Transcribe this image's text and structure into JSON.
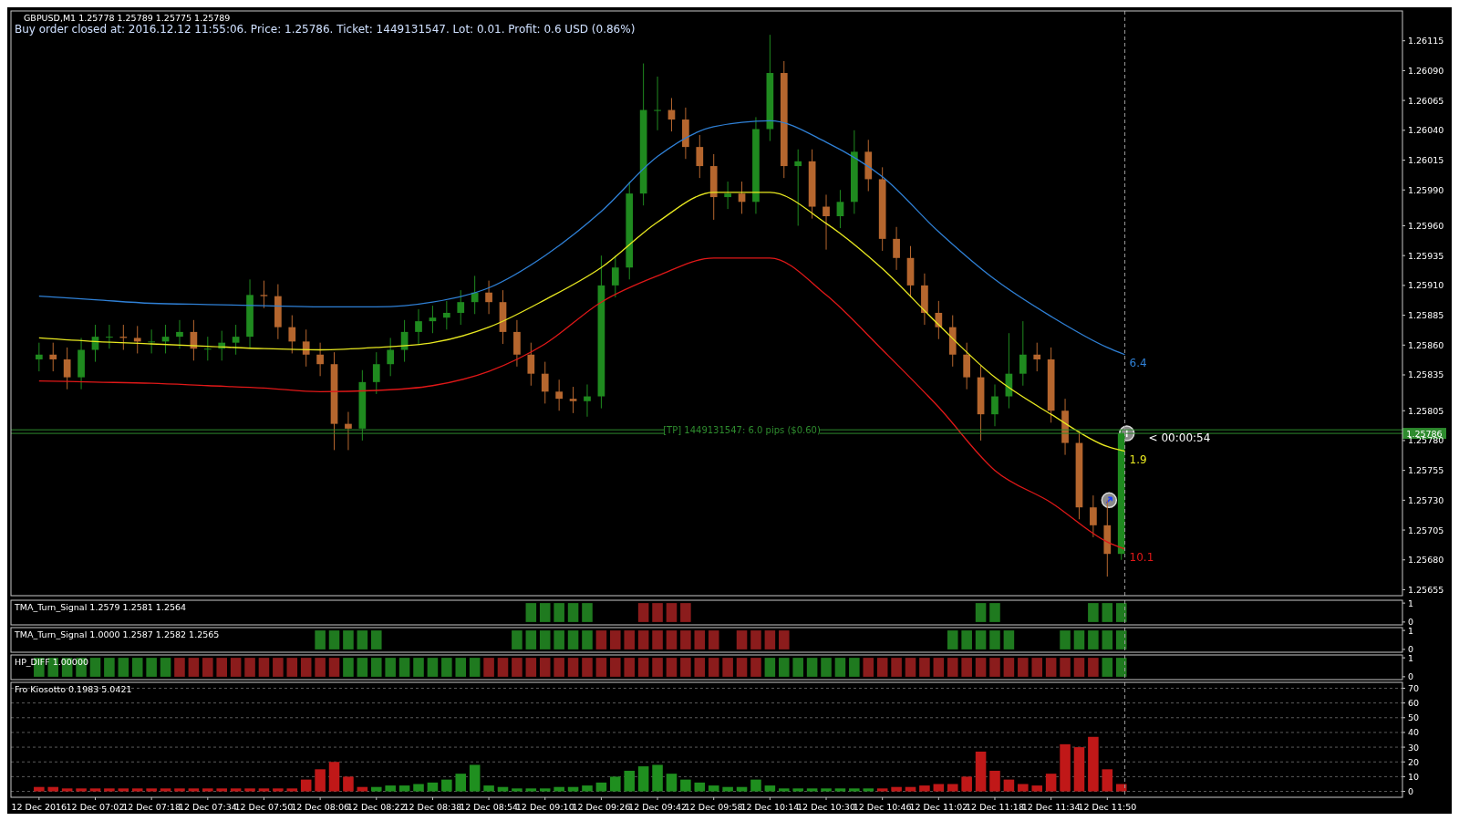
{
  "chart_data": [
    {
      "type": "candlestick",
      "title": "GBPUSD,M1  1.25778 1.25789 1.25775 1.25789",
      "subtitle": "Buy order closed at: 2016.12.12 11:55:06. Price: 1.25786. Ticket: 1449131547. Lot: 0.01. Profit: 0.6 USD (0.86%)",
      "x": [
        "2016-12-12T06:46",
        "2016-12-12T06:50",
        "2016-12-12T06:54",
        "2016-12-12T06:58",
        "2016-12-12T07:02",
        "2016-12-12T07:06",
        "2016-12-12T07:10",
        "2016-12-12T07:14",
        "2016-12-12T07:18",
        "2016-12-12T07:22",
        "2016-12-12T07:26",
        "2016-12-12T07:30",
        "2016-12-12T07:34",
        "2016-12-12T07:38",
        "2016-12-12T07:42",
        "2016-12-12T07:46",
        "2016-12-12T07:50",
        "2016-12-12T07:54",
        "2016-12-12T07:58",
        "2016-12-12T08:02",
        "2016-12-12T08:06",
        "2016-12-12T08:10",
        "2016-12-12T08:14",
        "2016-12-12T08:18",
        "2016-12-12T08:22",
        "2016-12-12T08:26",
        "2016-12-12T08:30",
        "2016-12-12T08:34",
        "2016-12-12T08:38",
        "2016-12-12T08:42",
        "2016-12-12T08:46",
        "2016-12-12T08:50",
        "2016-12-12T08:54",
        "2016-12-12T08:58",
        "2016-12-12T09:02",
        "2016-12-12T09:06",
        "2016-12-12T09:10",
        "2016-12-12T09:14",
        "2016-12-12T09:18",
        "2016-12-12T09:22",
        "2016-12-12T09:26",
        "2016-12-12T09:30",
        "2016-12-12T09:34",
        "2016-12-12T09:38",
        "2016-12-12T09:42",
        "2016-12-12T09:46",
        "2016-12-12T09:50",
        "2016-12-12T09:54",
        "2016-12-12T09:58",
        "2016-12-12T10:02",
        "2016-12-12T10:06",
        "2016-12-12T10:10",
        "2016-12-12T10:14",
        "2016-12-12T10:18",
        "2016-12-12T10:22",
        "2016-12-12T10:26",
        "2016-12-12T10:30",
        "2016-12-12T10:34",
        "2016-12-12T10:38",
        "2016-12-12T10:42",
        "2016-12-12T10:46",
        "2016-12-12T10:50",
        "2016-12-12T10:54",
        "2016-12-12T10:58",
        "2016-12-12T11:02",
        "2016-12-12T11:06",
        "2016-12-12T11:10",
        "2016-12-12T11:14",
        "2016-12-12T11:18",
        "2016-12-12T11:22",
        "2016-12-12T11:26",
        "2016-12-12T11:30",
        "2016-12-12T11:34",
        "2016-12-12T11:38",
        "2016-12-12T11:42",
        "2016-12-12T11:46",
        "2016-12-12T11:50",
        "2016-12-12T11:54"
      ],
      "ohlc": [
        [
          1.25848,
          1.25862,
          1.25838,
          1.25852
        ],
        [
          1.25852,
          1.25862,
          1.25838,
          1.25848
        ],
        [
          1.25848,
          1.25858,
          1.25823,
          1.25833
        ],
        [
          1.25833,
          1.25866,
          1.25823,
          1.25856
        ],
        [
          1.25856,
          1.25877,
          1.25846,
          1.25867
        ],
        [
          1.25867,
          1.25877,
          1.25857,
          1.25867
        ],
        [
          1.25867,
          1.25877,
          1.25856,
          1.25866
        ],
        [
          1.25866,
          1.25876,
          1.25853,
          1.25863
        ],
        [
          1.25863,
          1.25873,
          1.25853,
          1.25863
        ],
        [
          1.25863,
          1.25877,
          1.25853,
          1.25867
        ],
        [
          1.25867,
          1.25881,
          1.25857,
          1.25871
        ],
        [
          1.25871,
          1.25881,
          1.25847,
          1.25857
        ],
        [
          1.25857,
          1.25867,
          1.25847,
          1.25857
        ],
        [
          1.25857,
          1.25872,
          1.25847,
          1.25862
        ],
        [
          1.25862,
          1.25877,
          1.25852,
          1.25867
        ],
        [
          1.25867,
          1.25915,
          1.25857,
          1.25902
        ],
        [
          1.25902,
          1.25914,
          1.25891,
          1.25901
        ],
        [
          1.25901,
          1.25911,
          1.25865,
          1.25875
        ],
        [
          1.25875,
          1.25885,
          1.25853,
          1.25863
        ],
        [
          1.25863,
          1.25873,
          1.25842,
          1.25852
        ],
        [
          1.25852,
          1.25862,
          1.25834,
          1.25844
        ],
        [
          1.25844,
          1.25854,
          1.25772,
          1.25794
        ],
        [
          1.25794,
          1.25804,
          1.25772,
          1.2579
        ],
        [
          1.2579,
          1.25839,
          1.2578,
          1.25829
        ],
        [
          1.25829,
          1.25854,
          1.25819,
          1.25844
        ],
        [
          1.25844,
          1.25866,
          1.25834,
          1.25856
        ],
        [
          1.25856,
          1.25881,
          1.25846,
          1.25871
        ],
        [
          1.25871,
          1.2589,
          1.25861,
          1.2588
        ],
        [
          1.2588,
          1.25893,
          1.2587,
          1.25883
        ],
        [
          1.25883,
          1.25897,
          1.25873,
          1.25887
        ],
        [
          1.25887,
          1.25906,
          1.25877,
          1.25896
        ],
        [
          1.25896,
          1.25918,
          1.25886,
          1.25904
        ],
        [
          1.25904,
          1.25914,
          1.25886,
          1.25896
        ],
        [
          1.25896,
          1.25906,
          1.25861,
          1.25871
        ],
        [
          1.25871,
          1.25881,
          1.25842,
          1.25852
        ],
        [
          1.25852,
          1.25862,
          1.25826,
          1.25836
        ],
        [
          1.25836,
          1.25846,
          1.25811,
          1.25821
        ],
        [
          1.25821,
          1.25831,
          1.25805,
          1.25815
        ],
        [
          1.25815,
          1.25825,
          1.25803,
          1.25813
        ],
        [
          1.25813,
          1.25827,
          1.258,
          1.25817
        ],
        [
          1.25817,
          1.25935,
          1.25807,
          1.2591
        ],
        [
          1.2591,
          1.25935,
          1.259,
          1.25925
        ],
        [
          1.25925,
          1.25997,
          1.25915,
          1.25987
        ],
        [
          1.25987,
          1.26096,
          1.25977,
          1.26057
        ],
        [
          1.26057,
          1.26085,
          1.2604,
          1.26057
        ],
        [
          1.26057,
          1.26067,
          1.26039,
          1.26049
        ],
        [
          1.26049,
          1.26059,
          1.26016,
          1.26026
        ],
        [
          1.26026,
          1.26036,
          1.26,
          1.2601
        ],
        [
          1.2601,
          1.2602,
          1.25965,
          1.25984
        ],
        [
          1.25984,
          1.25997,
          1.25974,
          1.25987
        ],
        [
          1.25987,
          1.25997,
          1.2597,
          1.2598
        ],
        [
          1.2598,
          1.26051,
          1.2597,
          1.26041
        ],
        [
          1.26041,
          1.2612,
          1.26031,
          1.26088
        ],
        [
          1.26088,
          1.26098,
          1.26,
          1.2601
        ],
        [
          1.2601,
          1.26024,
          1.2596,
          1.26014
        ],
        [
          1.26014,
          1.26024,
          1.25966,
          1.25976
        ],
        [
          1.25976,
          1.25986,
          1.2594,
          1.25968
        ],
        [
          1.25968,
          1.2599,
          1.25958,
          1.2598
        ],
        [
          1.2598,
          1.2604,
          1.2597,
          1.26022
        ],
        [
          1.26022,
          1.26032,
          1.25989,
          1.25999
        ],
        [
          1.25999,
          1.26009,
          1.25939,
          1.25949
        ],
        [
          1.25949,
          1.25959,
          1.25923,
          1.25933
        ],
        [
          1.25933,
          1.25943,
          1.259,
          1.2591
        ],
        [
          1.2591,
          1.2592,
          1.25877,
          1.25887
        ],
        [
          1.25887,
          1.25897,
          1.25865,
          1.25875
        ],
        [
          1.25875,
          1.25885,
          1.25842,
          1.25852
        ],
        [
          1.25852,
          1.25862,
          1.25823,
          1.25833
        ],
        [
          1.25833,
          1.25843,
          1.2578,
          1.25802
        ],
        [
          1.25802,
          1.25827,
          1.25792,
          1.25817
        ],
        [
          1.25817,
          1.2587,
          1.25807,
          1.25836
        ],
        [
          1.25836,
          1.2588,
          1.25826,
          1.25852
        ],
        [
          1.25852,
          1.25862,
          1.25838,
          1.25848
        ],
        [
          1.25848,
          1.25858,
          1.25795,
          1.25805
        ],
        [
          1.25805,
          1.25815,
          1.25768,
          1.25778
        ],
        [
          1.25778,
          1.25788,
          1.25714,
          1.25724
        ],
        [
          1.25724,
          1.25734,
          1.25699,
          1.25709
        ],
        [
          1.25709,
          1.2573,
          1.25666,
          1.25685
        ],
        [
          1.25685,
          1.25789,
          1.2568,
          1.25786
        ]
      ],
      "colors": [
        "#1f8a1f",
        "#b5662e",
        "#b5662e",
        "#1f8a1f",
        "#1f8a1f",
        "#1f8a1f",
        "#b5662e",
        "#b5662e",
        "#1f8a1f",
        "#1f8a1f",
        "#1f8a1f",
        "#b5662e",
        "#1f8a1f",
        "#1f8a1f",
        "#1f8a1f",
        "#1f8a1f",
        "#b5662e",
        "#b5662e",
        "#b5662e",
        "#b5662e",
        "#b5662e",
        "#b5662e",
        "#b5662e",
        "#1f8a1f",
        "#1f8a1f",
        "#1f8a1f",
        "#1f8a1f",
        "#1f8a1f",
        "#1f8a1f",
        "#1f8a1f",
        "#1f8a1f",
        "#1f8a1f",
        "#b5662e",
        "#b5662e",
        "#b5662e",
        "#b5662e",
        "#b5662e",
        "#b5662e",
        "#b5662e",
        "#1f8a1f",
        "#1f8a1f",
        "#1f8a1f",
        "#1f8a1f",
        "#1f8a1f",
        "#1f8a1f",
        "#b5662e",
        "#b5662e",
        "#b5662e",
        "#b5662e",
        "#1f8a1f",
        "#b5662e",
        "#1f8a1f",
        "#1f8a1f",
        "#b5662e",
        "#1f8a1f",
        "#b5662e",
        "#b5662e",
        "#1f8a1f",
        "#1f8a1f",
        "#b5662e",
        "#b5662e",
        "#b5662e",
        "#b5662e",
        "#b5662e",
        "#b5662e",
        "#b5662e",
        "#b5662e",
        "#b5662e",
        "#1f8a1f",
        "#1f8a1f",
        "#1f8a1f",
        "#b5662e",
        "#b5662e",
        "#b5662e",
        "#b5662e",
        "#b5662e",
        "#b5662e",
        "#1f8a1f"
      ],
      "series": [
        {
          "type": "line",
          "name": "6.4",
          "color": "#2f80d6",
          "x": [
            "2016-12-12T06:46",
            "2016-12-12T07:02",
            "2016-12-12T07:18",
            "2016-12-12T07:34",
            "2016-12-12T07:50",
            "2016-12-12T08:06",
            "2016-12-12T08:22",
            "2016-12-12T08:38",
            "2016-12-12T08:54",
            "2016-12-12T09:10",
            "2016-12-12T09:26",
            "2016-12-12T09:42",
            "2016-12-12T09:58",
            "2016-12-12T10:14",
            "2016-12-12T10:30",
            "2016-12-12T10:46",
            "2016-12-12T11:02",
            "2016-12-12T11:18",
            "2016-12-12T11:34",
            "2016-12-12T11:50",
            "2016-12-12T11:55"
          ],
          "values": [
            1.25901,
            1.25898,
            1.25895,
            1.25894,
            1.25893,
            1.25892,
            1.25892,
            1.25896,
            1.25908,
            1.25935,
            1.25972,
            1.26018,
            1.26043,
            1.26048,
            1.2603,
            1.26001,
            1.25955,
            1.25915,
            1.25884,
            1.25858,
            1.25852
          ]
        },
        {
          "type": "line",
          "name": "1.9",
          "color": "#e8e820",
          "x": [
            "2016-12-12T06:46",
            "2016-12-12T07:02",
            "2016-12-12T07:18",
            "2016-12-12T07:34",
            "2016-12-12T07:50",
            "2016-12-12T08:06",
            "2016-12-12T08:22",
            "2016-12-12T08:38",
            "2016-12-12T08:54",
            "2016-12-12T09:10",
            "2016-12-12T09:26",
            "2016-12-12T09:42",
            "2016-12-12T09:58",
            "2016-12-12T10:14",
            "2016-12-12T10:30",
            "2016-12-12T10:46",
            "2016-12-12T11:02",
            "2016-12-12T11:18",
            "2016-12-12T11:34",
            "2016-12-12T11:50",
            "2016-12-12T11:55"
          ],
          "values": [
            1.25866,
            1.25863,
            1.25861,
            1.25859,
            1.25857,
            1.25856,
            1.25858,
            1.25862,
            1.25875,
            1.25898,
            1.25925,
            1.25963,
            1.25988,
            1.25988,
            1.25962,
            1.25924,
            1.25877,
            1.25833,
            1.25802,
            1.25775,
            1.25771
          ]
        },
        {
          "type": "line",
          "name": "10.1",
          "color": "#e01818",
          "x": [
            "2016-12-12T06:46",
            "2016-12-12T07:02",
            "2016-12-12T07:18",
            "2016-12-12T07:34",
            "2016-12-12T07:50",
            "2016-12-12T08:06",
            "2016-12-12T08:22",
            "2016-12-12T08:38",
            "2016-12-12T08:54",
            "2016-12-12T09:10",
            "2016-12-12T09:26",
            "2016-12-12T09:42",
            "2016-12-12T09:58",
            "2016-12-12T10:14",
            "2016-12-12T10:30",
            "2016-12-12T10:46",
            "2016-12-12T11:02",
            "2016-12-12T11:18",
            "2016-12-12T11:34",
            "2016-12-12T11:50",
            "2016-12-12T11:55"
          ],
          "values": [
            1.2583,
            1.25829,
            1.25828,
            1.25826,
            1.25824,
            1.25821,
            1.25822,
            1.25826,
            1.25838,
            1.25861,
            1.25896,
            1.25918,
            1.25933,
            1.25933,
            1.25902,
            1.25856,
            1.25808,
            1.25755,
            1.25728,
            1.25695,
            1.25689
          ]
        }
      ],
      "xlim": [
        "2016-12-12T06:38",
        "2016-12-12T13:14"
      ],
      "ylim": [
        1.2565,
        1.2614
      ],
      "yticks": [
        1.25655,
        {
          "value": 1.2568,
          "label": "1.25680"
        },
        1.25705,
        {
          "value": 1.2573,
          "label": "1.25730"
        },
        1.25755,
        {
          "value": 1.2578,
          "label": "1.25780"
        },
        1.25805,
        1.25835,
        {
          "value": 1.2586,
          "label": "1.25860"
        },
        1.25885,
        {
          "value": 1.2591,
          "label": "1.25910"
        },
        1.25935,
        {
          "value": 1.2596,
          "label": "1.25960"
        },
        {
          "value": 1.2599,
          "label": "1.25990"
        },
        1.26015,
        {
          "value": 1.2604,
          "label": "1.26040"
        },
        1.26065,
        {
          "value": 1.2609,
          "label": "1.26090"
        },
        1.26115
      ],
      "tick_labels": "y",
      "ref_lines": [
        {
          "axis": "y",
          "value": 1.25789,
          "label": null,
          "color": "#2e8b2e"
        },
        {
          "axis": "y",
          "value": 1.25786,
          "label": "1.25786",
          "color": "#2e8b2e"
        },
        {
          "axis": "x",
          "value": "2016-12-12T11:55",
          "label": null,
          "color": "#9a9a9a",
          "line_style": "dashed"
        }
      ],
      "annotations": [
        {
          "text": "[TP] 1449131547: 6.0 pips ($0.60)",
          "x": "2016-12-12T10:06",
          "y": 1.25789
        },
        {
          "text": "< 00:00:54",
          "x": "2016-12-12T11:55",
          "y": 1.25782
        }
      ]
    },
    {
      "type": "bar",
      "title": "TMA_Turn_Signal 1.2579 1.2581 1.2564",
      "xlim": [
        "2016-12-12T06:38",
        "2016-12-12T13:14"
      ],
      "ylim": [
        -0.15,
        1.15
      ],
      "yticks": [
        0,
        1
      ],
      "tick_labels": "y",
      "series": [
        {
          "color": "#1f7a1f",
          "x": [
            "2016-12-12T09:06",
            "2016-12-12T09:10",
            "2016-12-12T09:14",
            "2016-12-12T09:18",
            "2016-12-12T09:22",
            "2016-12-12T11:14",
            "2016-12-12T11:18",
            "2016-12-12T11:46",
            "2016-12-12T11:50",
            "2016-12-12T11:54"
          ],
          "values": [
            1,
            1,
            1,
            1,
            1,
            1,
            1,
            1,
            1,
            1
          ]
        },
        {
          "color": "#8b1c1c",
          "x": [
            "2016-12-12T09:38",
            "2016-12-12T09:42",
            "2016-12-12T09:46",
            "2016-12-12T09:50"
          ],
          "values": [
            1,
            1,
            1,
            1
          ]
        }
      ],
      "ref_lines": [
        {
          "axis": "x",
          "value": "2016-12-12T11:55",
          "label": null,
          "color": "#9a9a9a",
          "line_style": "dashed"
        }
      ]
    },
    {
      "type": "bar",
      "title": "TMA_Turn_Signal 1.0000 1.2587 1.2582 1.2565",
      "xlim": [
        "2016-12-12T06:38",
        "2016-12-12T13:14"
      ],
      "ylim": [
        -0.15,
        1.15
      ],
      "yticks": [
        0,
        1
      ],
      "tick_labels": "y",
      "series": [
        {
          "color": "#1f7a1f",
          "x": [
            "2016-12-12T08:06",
            "2016-12-12T08:10",
            "2016-12-12T08:14",
            "2016-12-12T08:18",
            "2016-12-12T08:22",
            "2016-12-12T09:02",
            "2016-12-12T09:06",
            "2016-12-12T09:10",
            "2016-12-12T09:14",
            "2016-12-12T09:18",
            "2016-12-12T09:22",
            "2016-12-12T11:06",
            "2016-12-12T11:10",
            "2016-12-12T11:14",
            "2016-12-12T11:18",
            "2016-12-12T11:22",
            "2016-12-12T11:38",
            "2016-12-12T11:42",
            "2016-12-12T11:46",
            "2016-12-12T11:50",
            "2016-12-12T11:54"
          ],
          "values": [
            1,
            1,
            1,
            1,
            1,
            1,
            1,
            1,
            1,
            1,
            1,
            1,
            1,
            1,
            1,
            1,
            1,
            1,
            1,
            1,
            1
          ]
        },
        {
          "color": "#8b1c1c",
          "x": [
            "2016-12-12T09:26",
            "2016-12-12T09:30",
            "2016-12-12T09:34",
            "2016-12-12T09:38",
            "2016-12-12T09:42",
            "2016-12-12T09:46",
            "2016-12-12T09:50",
            "2016-12-12T09:54",
            "2016-12-12T09:58",
            "2016-12-12T10:06",
            "2016-12-12T10:10",
            "2016-12-12T10:14",
            "2016-12-12T10:18"
          ],
          "values": [
            1,
            1,
            1,
            1,
            1,
            1,
            1,
            1,
            1,
            1,
            1,
            1,
            1
          ]
        }
      ],
      "ref_lines": [
        {
          "axis": "x",
          "value": "2016-12-12T11:55",
          "label": null,
          "color": "#9a9a9a",
          "line_style": "dashed"
        }
      ]
    },
    {
      "type": "bar",
      "title": "HP_DIFF 1.00000",
      "xlim": [
        "2016-12-12T06:38",
        "2016-12-12T13:14"
      ],
      "ylim": [
        -0.15,
        1.15
      ],
      "yticks": [
        0,
        1
      ],
      "tick_labels": "y",
      "series": [
        {
          "color": "#1f7a1f",
          "x": [
            "2016-12-12T06:46",
            "2016-12-12T06:50",
            "2016-12-12T06:54",
            "2016-12-12T06:58",
            "2016-12-12T07:02",
            "2016-12-12T07:06",
            "2016-12-12T07:10",
            "2016-12-12T07:14",
            "2016-12-12T07:18",
            "2016-12-12T07:22",
            "2016-12-12T08:14",
            "2016-12-12T08:18",
            "2016-12-12T08:22",
            "2016-12-12T08:26",
            "2016-12-12T08:30",
            "2016-12-12T08:34",
            "2016-12-12T08:38",
            "2016-12-12T08:42",
            "2016-12-12T08:46",
            "2016-12-12T08:50",
            "2016-12-12T10:14",
            "2016-12-12T10:18",
            "2016-12-12T10:22",
            "2016-12-12T10:26",
            "2016-12-12T10:30",
            "2016-12-12T10:34",
            "2016-12-12T10:38",
            "2016-12-12T11:50",
            "2016-12-12T11:54"
          ],
          "values": [
            1,
            1,
            1,
            1,
            1,
            1,
            1,
            1,
            1,
            1,
            1,
            1,
            1,
            1,
            1,
            1,
            1,
            1,
            1,
            1,
            1,
            1,
            1,
            1,
            1,
            1,
            1,
            1,
            1
          ]
        },
        {
          "color": "#8b1c1c",
          "x": [
            "2016-12-12T07:26",
            "2016-12-12T07:30",
            "2016-12-12T07:34",
            "2016-12-12T07:38",
            "2016-12-12T07:42",
            "2016-12-12T07:46",
            "2016-12-12T07:50",
            "2016-12-12T07:54",
            "2016-12-12T07:58",
            "2016-12-12T08:02",
            "2016-12-12T08:06",
            "2016-12-12T08:10",
            "2016-12-12T08:54",
            "2016-12-12T08:58",
            "2016-12-12T09:02",
            "2016-12-12T09:06",
            "2016-12-12T09:10",
            "2016-12-12T09:14",
            "2016-12-12T09:18",
            "2016-12-12T09:22",
            "2016-12-12T09:26",
            "2016-12-12T09:30",
            "2016-12-12T09:34",
            "2016-12-12T09:38",
            "2016-12-12T09:42",
            "2016-12-12T09:46",
            "2016-12-12T09:50",
            "2016-12-12T09:54",
            "2016-12-12T09:58",
            "2016-12-12T10:02",
            "2016-12-12T10:06",
            "2016-12-12T10:10",
            "2016-12-12T10:42",
            "2016-12-12T10:46",
            "2016-12-12T10:50",
            "2016-12-12T10:54",
            "2016-12-12T10:58",
            "2016-12-12T11:02",
            "2016-12-12T11:06",
            "2016-12-12T11:10",
            "2016-12-12T11:14",
            "2016-12-12T11:18",
            "2016-12-12T11:22",
            "2016-12-12T11:26",
            "2016-12-12T11:30",
            "2016-12-12T11:34",
            "2016-12-12T11:38",
            "2016-12-12T11:42",
            "2016-12-12T11:46"
          ],
          "values": [
            1,
            1,
            1,
            1,
            1,
            1,
            1,
            1,
            1,
            1,
            1,
            1,
            1,
            1,
            1,
            1,
            1,
            1,
            1,
            1,
            1,
            1,
            1,
            1,
            1,
            1,
            1,
            1,
            1,
            1,
            1,
            1,
            1,
            1,
            1,
            1,
            1,
            1,
            1,
            1,
            1,
            1,
            1,
            1,
            1,
            1,
            1,
            1,
            1
          ]
        }
      ],
      "ref_lines": [
        {
          "axis": "x",
          "value": "2016-12-12T11:55",
          "label": null,
          "color": "#9a9a9a",
          "line_style": "dashed"
        }
      ]
    },
    {
      "type": "bar",
      "title": "Fro Kiosotto 0.1983 5.0421",
      "xlim": [
        "2016-12-12T06:38",
        "2016-12-12T13:14"
      ],
      "ylim": [
        -4,
        74
      ],
      "yticks": [
        0,
        10,
        20,
        30,
        40,
        50,
        60,
        70
      ],
      "grid": "y",
      "xticks": [
        {
          "value": "2016-12-12T06:46",
          "label": "12 Dec 2016"
        },
        {
          "value": "2016-12-12T07:02",
          "label": "12 Dec 07:02"
        },
        {
          "value": "2016-12-12T07:18",
          "label": "12 Dec 07:18"
        },
        {
          "value": "2016-12-12T07:34",
          "label": "12 Dec 07:34"
        },
        {
          "value": "2016-12-12T07:50",
          "label": "12 Dec 07:50"
        },
        {
          "value": "2016-12-12T08:06",
          "label": "12 Dec 08:06"
        },
        {
          "value": "2016-12-12T08:22",
          "label": "12 Dec 08:22"
        },
        {
          "value": "2016-12-12T08:38",
          "label": "12 Dec 08:38"
        },
        {
          "value": "2016-12-12T08:54",
          "label": "12 Dec 08:54"
        },
        {
          "value": "2016-12-12T09:10",
          "label": "12 Dec 09:10"
        },
        {
          "value": "2016-12-12T09:26",
          "label": "12 Dec 09:26"
        },
        {
          "value": "2016-12-12T09:42",
          "label": "12 Dec 09:42"
        },
        {
          "value": "2016-12-12T09:58",
          "label": "12 Dec 09:58"
        },
        {
          "value": "2016-12-12T10:14",
          "label": "12 Dec 10:14"
        },
        {
          "value": "2016-12-12T10:30",
          "label": "12 Dec 10:30"
        },
        {
          "value": "2016-12-12T10:46",
          "label": "12 Dec 10:46"
        },
        {
          "value": "2016-12-12T11:02",
          "label": "12 Dec 11:02"
        },
        {
          "value": "2016-12-12T11:18",
          "label": "12 Dec 11:18"
        },
        {
          "value": "2016-12-12T11:34",
          "label": "12 Dec 11:34"
        },
        {
          "value": "2016-12-12T11:50",
          "label": "12 Dec 11:50"
        }
      ],
      "series": [
        {
          "color": "#c01818",
          "x": [
            "2016-12-12T06:46",
            "2016-12-12T06:50",
            "2016-12-12T06:54",
            "2016-12-12T06:58",
            "2016-12-12T07:02",
            "2016-12-12T07:06",
            "2016-12-12T07:10",
            "2016-12-12T07:14",
            "2016-12-12T07:18",
            "2016-12-12T07:22",
            "2016-12-12T07:26",
            "2016-12-12T07:30",
            "2016-12-12T07:34",
            "2016-12-12T07:38",
            "2016-12-12T07:42",
            "2016-12-12T07:46",
            "2016-12-12T07:50",
            "2016-12-12T07:54",
            "2016-12-12T07:58",
            "2016-12-12T08:02",
            "2016-12-12T08:06",
            "2016-12-12T08:10",
            "2016-12-12T08:14",
            "2016-12-12T08:18",
            "2016-12-12T10:46",
            "2016-12-12T10:50",
            "2016-12-12T10:54",
            "2016-12-12T10:58",
            "2016-12-12T11:02",
            "2016-12-12T11:06",
            "2016-12-12T11:10",
            "2016-12-12T11:14",
            "2016-12-12T11:18",
            "2016-12-12T11:22",
            "2016-12-12T11:26",
            "2016-12-12T11:30",
            "2016-12-12T11:34",
            "2016-12-12T11:38",
            "2016-12-12T11:42",
            "2016-12-12T11:46",
            "2016-12-12T11:50",
            "2016-12-12T11:54"
          ],
          "values": [
            3,
            3,
            2,
            2,
            2,
            2,
            2,
            2,
            2,
            2,
            2,
            2,
            2,
            2,
            2,
            2,
            2,
            2,
            2,
            8,
            15,
            20,
            10,
            3,
            2,
            3,
            3,
            4,
            5,
            5,
            10,
            27,
            14,
            8,
            5,
            4,
            12,
            32,
            30,
            37,
            15,
            5
          ]
        },
        {
          "color": "#1f8f1f",
          "x": [
            "2016-12-12T08:22",
            "2016-12-12T08:26",
            "2016-12-12T08:30",
            "2016-12-12T08:34",
            "2016-12-12T08:38",
            "2016-12-12T08:42",
            "2016-12-12T08:46",
            "2016-12-12T08:50",
            "2016-12-12T08:54",
            "2016-12-12T08:58",
            "2016-12-12T09:02",
            "2016-12-12T09:06",
            "2016-12-12T09:10",
            "2016-12-12T09:14",
            "2016-12-12T09:18",
            "2016-12-12T09:22",
            "2016-12-12T09:26",
            "2016-12-12T09:30",
            "2016-12-12T09:34",
            "2016-12-12T09:38",
            "2016-12-12T09:42",
            "2016-12-12T09:46",
            "2016-12-12T09:50",
            "2016-12-12T09:54",
            "2016-12-12T09:58",
            "2016-12-12T10:02",
            "2016-12-12T10:06",
            "2016-12-12T10:10",
            "2016-12-12T10:14",
            "2016-12-12T10:18",
            "2016-12-12T10:22",
            "2016-12-12T10:26",
            "2016-12-12T10:30",
            "2016-12-12T10:34",
            "2016-12-12T10:38",
            "2016-12-12T10:42"
          ],
          "values": [
            3,
            4,
            4,
            5,
            6,
            8,
            12,
            18,
            4,
            3,
            2,
            2,
            2,
            3,
            3,
            4,
            6,
            10,
            14,
            17,
            18,
            12,
            8,
            6,
            4,
            3,
            3,
            8,
            4,
            2,
            2,
            2,
            2,
            2,
            2,
            2
          ]
        }
      ],
      "ref_lines": [
        {
          "axis": "x",
          "value": "2016-12-12T11:55",
          "label": null,
          "color": "#9a9a9a",
          "line_style": "dashed"
        }
      ]
    }
  ]
}
